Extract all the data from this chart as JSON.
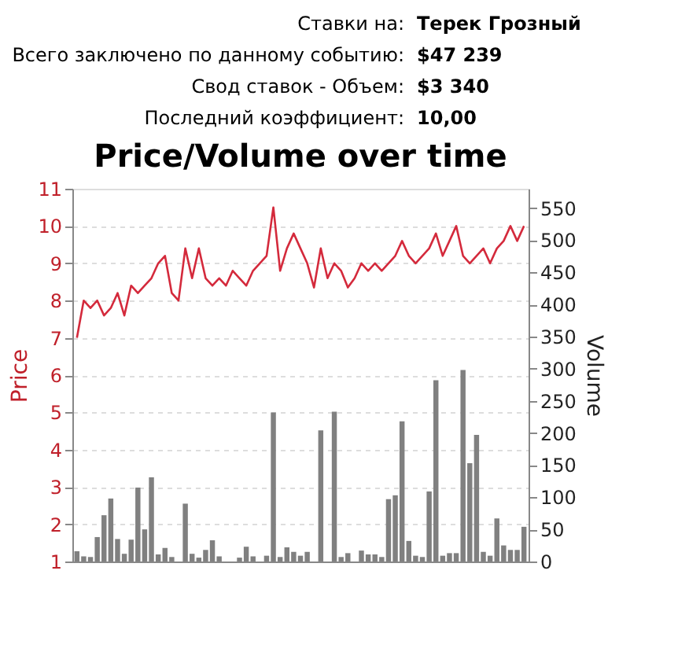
{
  "chart_data": {
    "type": "line",
    "title": "Price/Volume over time",
    "annotations": [
      "Ставки на:",
      "Терек Грозный",
      "Всего заключено по данному событию:",
      "$47 239",
      "Свод ставок - Объем:",
      "$3 340",
      "Последний коэффициент:",
      "10,00"
    ],
    "categories": [
      null,
      null,
      null,
      null,
      null,
      null,
      null,
      null,
      null,
      null,
      null,
      null,
      null,
      null,
      null,
      null,
      null,
      null,
      null,
      null,
      null,
      null,
      null,
      null,
      null,
      null,
      null,
      null,
      null,
      null,
      null,
      null,
      null,
      null,
      null,
      null,
      null,
      null,
      null,
      null,
      null,
      null,
      null,
      null,
      null,
      null,
      null,
      null,
      null,
      null,
      null,
      null,
      null,
      null,
      null,
      null,
      null,
      null,
      null,
      null,
      null,
      null,
      null,
      null,
      null,
      null,
      null
    ],
    "ylabel": "Price",
    "y2label": "Volume",
    "series": [
      {
        "type": "bar",
        "axis": "y2",
        "color": "#808080",
        "values": [
          16,
          8,
          7,
          38,
          72,
          98,
          35,
          12,
          34,
          115,
          50,
          131,
          11,
          21,
          7,
          0,
          90,
          12,
          6,
          18,
          33,
          8,
          0,
          0,
          6,
          23,
          8,
          0,
          9,
          232,
          7,
          22,
          15,
          9,
          15,
          0,
          204,
          0,
          233,
          7,
          13,
          0,
          17,
          11,
          11,
          7,
          97,
          103,
          218,
          32,
          9,
          7,
          109,
          282,
          9,
          13,
          13,
          298,
          153,
          197,
          15,
          9,
          67,
          25,
          18,
          18,
          54
        ]
      },
      {
        "color": "#d42a3c",
        "values": [
          7.0,
          8.0,
          7.8,
          8.0,
          7.6,
          7.8,
          8.2,
          7.6,
          8.4,
          8.2,
          8.4,
          8.6,
          9.0,
          9.2,
          8.2,
          8.0,
          9.4,
          8.6,
          9.4,
          8.6,
          8.4,
          8.6,
          8.4,
          8.8,
          8.6,
          8.4,
          8.8,
          9.0,
          9.2,
          10.5,
          8.8,
          9.4,
          9.8,
          9.4,
          9.0,
          8.35,
          9.4,
          8.6,
          9.0,
          8.8,
          8.35,
          8.6,
          9.0,
          8.8,
          9.0,
          8.8,
          9.0,
          9.2,
          9.6,
          9.2,
          9.0,
          9.2,
          9.4,
          9.8,
          9.2,
          9.6,
          10.0,
          9.2,
          9.0,
          9.2,
          9.4,
          9.0,
          9.4,
          9.6,
          10.0,
          9.6,
          10.0
        ]
      }
    ],
    "ylim": [
      1,
      11
    ],
    "yticks": [
      1,
      2,
      3,
      4,
      5,
      6,
      7,
      8,
      9,
      10,
      11
    ],
    "y2lim": [
      0,
      580
    ],
    "y2ticks": [
      0,
      50,
      100,
      150,
      200,
      250,
      300,
      350,
      400,
      450,
      500,
      550
    ],
    "grid": "y",
    "tick_labels": "y"
  }
}
